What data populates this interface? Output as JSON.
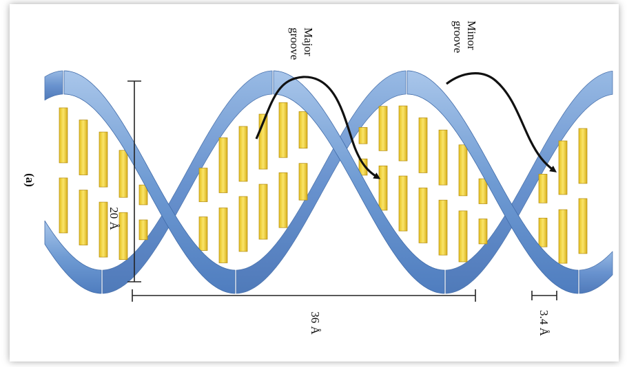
{
  "figure": {
    "panel_label": "(a)",
    "major_groove_label": [
      "Major",
      "groove"
    ],
    "minor_groove_label": [
      "Minor",
      "groove"
    ],
    "diameter_label": "20 Å",
    "pitch_label": "36 Å",
    "rise_label": "3.4 Å"
  },
  "colors": {
    "strand": "#7fa8d8",
    "strand_dark": "#5a86c2",
    "strand_light": "#b8d0ee",
    "base": "#f2d23a",
    "base_dark": "#c9a215",
    "arrow": "#111111",
    "dimension_line": "#222222"
  }
}
